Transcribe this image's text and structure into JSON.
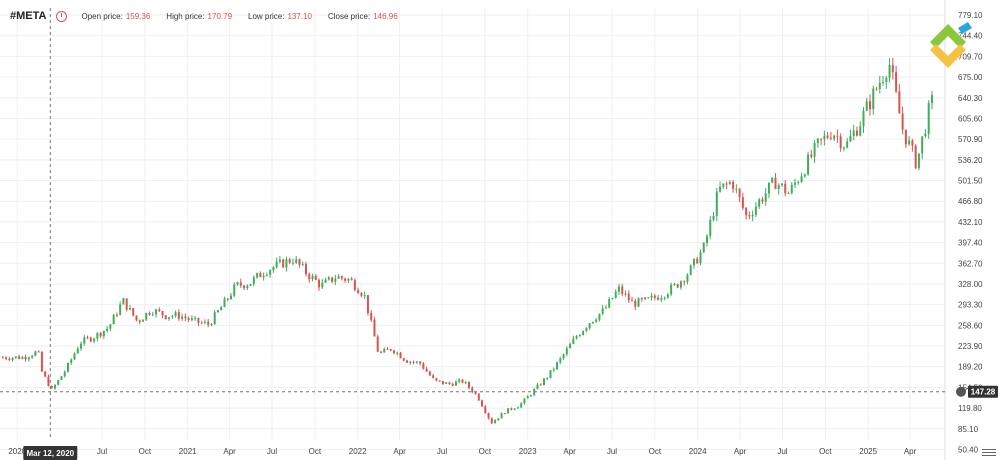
{
  "header": {
    "symbol": "#META",
    "open_label": "Open price:",
    "open_value": "159.36",
    "high_label": "High price:",
    "high_value": "170.79",
    "low_label": "Low price:",
    "low_value": "137.10",
    "close_label": "Close price:",
    "close_value": "146.96"
  },
  "crosshair": {
    "date_label": "Mar 12, 2020",
    "price_label": "147.28",
    "price": 147.28
  },
  "colors": {
    "up": "#3fae5a",
    "down": "#d9534f",
    "grid": "#efefef",
    "axis_text": "#444444",
    "price_label_bg": "#333333",
    "date_label_bg": "#333333"
  },
  "icons": [
    "clock-icon",
    "crosshair-target-icon",
    "settings-icon",
    "logo-icon"
  ],
  "chart_data": {
    "type": "candlestick",
    "y_axis": {
      "ticks": [
        "50.40",
        "85.10",
        "119.80",
        "154.50",
        "189.20",
        "223.90",
        "258.60",
        "293.30",
        "328.00",
        "362.70",
        "397.40",
        "432.10",
        "466.80",
        "501.50",
        "536.20",
        "570.90",
        "605.60",
        "640.30",
        "675.00",
        "709.70",
        "744.40",
        "779.10"
      ],
      "tick_values": [
        50.4,
        85.1,
        119.8,
        154.5,
        189.2,
        223.9,
        258.6,
        293.3,
        328.0,
        362.7,
        397.4,
        432.1,
        466.8,
        501.5,
        536.2,
        570.9,
        605.6,
        640.3,
        675.0,
        709.7,
        744.4,
        779.1
      ],
      "range": [
        50.4,
        779.1
      ]
    },
    "x_axis": {
      "labels": [
        "2020",
        "Jul",
        "Oct",
        "2021",
        "Apr",
        "Jul",
        "Oct",
        "2022",
        "Apr",
        "Jul",
        "Oct",
        "2023",
        "Apr",
        "Jul",
        "Oct",
        "2024",
        "Apr",
        "Jul",
        "Oct",
        "2025",
        "Apr"
      ],
      "label_dates": [
        "2020-01-01",
        "2020-07-01",
        "2020-10-01",
        "2021-01-01",
        "2021-04-01",
        "2021-07-01",
        "2021-10-01",
        "2022-01-01",
        "2022-04-01",
        "2022-07-01",
        "2022-10-01",
        "2023-01-01",
        "2023-04-01",
        "2023-07-01",
        "2023-10-01",
        "2024-01-01",
        "2024-04-01",
        "2024-07-01",
        "2024-10-01",
        "2025-01-01",
        "2025-04-01"
      ],
      "range": [
        "2019-11-25",
        "2025-06-15"
      ]
    },
    "series": [
      {
        "date": "2020-01",
        "close": 205
      },
      {
        "date": "2020-02",
        "close": 215
      },
      {
        "date": "2020-02-20",
        "close": 185
      },
      {
        "date": "2020-03",
        "close": 150
      },
      {
        "date": "2020-04",
        "close": 185
      },
      {
        "date": "2020-05",
        "close": 230
      },
      {
        "date": "2020-06",
        "close": 240
      },
      {
        "date": "2020-07",
        "close": 255
      },
      {
        "date": "2020-08",
        "close": 300
      },
      {
        "date": "2020-09",
        "close": 265
      },
      {
        "date": "2020-10",
        "close": 285
      },
      {
        "date": "2020-11",
        "close": 275
      },
      {
        "date": "2020-12",
        "close": 275
      },
      {
        "date": "2021-01",
        "close": 265
      },
      {
        "date": "2021-02",
        "close": 260
      },
      {
        "date": "2021-03",
        "close": 290
      },
      {
        "date": "2021-04",
        "close": 325
      },
      {
        "date": "2021-05",
        "close": 330
      },
      {
        "date": "2021-06",
        "close": 350
      },
      {
        "date": "2021-07",
        "close": 360
      },
      {
        "date": "2021-08",
        "close": 370
      },
      {
        "date": "2021-09",
        "close": 345
      },
      {
        "date": "2021-10",
        "close": 325
      },
      {
        "date": "2021-11",
        "close": 340
      },
      {
        "date": "2021-12",
        "close": 335
      },
      {
        "date": "2022-01",
        "close": 310
      },
      {
        "date": "2022-02",
        "close": 210
      },
      {
        "date": "2022-03",
        "close": 220
      },
      {
        "date": "2022-04",
        "close": 200
      },
      {
        "date": "2022-05",
        "close": 195
      },
      {
        "date": "2022-06",
        "close": 165
      },
      {
        "date": "2022-07",
        "close": 160
      },
      {
        "date": "2022-08",
        "close": 165
      },
      {
        "date": "2022-09",
        "close": 140
      },
      {
        "date": "2022-10",
        "close": 95
      },
      {
        "date": "2022-11",
        "close": 115
      },
      {
        "date": "2022-12",
        "close": 125
      },
      {
        "date": "2023-01",
        "close": 150
      },
      {
        "date": "2023-02",
        "close": 175
      },
      {
        "date": "2023-03",
        "close": 205
      },
      {
        "date": "2023-04",
        "close": 240
      },
      {
        "date": "2023-05",
        "close": 265
      },
      {
        "date": "2023-06",
        "close": 285
      },
      {
        "date": "2023-07",
        "close": 320
      },
      {
        "date": "2023-08",
        "close": 295
      },
      {
        "date": "2023-09",
        "close": 300
      },
      {
        "date": "2023-10",
        "close": 310
      },
      {
        "date": "2023-11",
        "close": 325
      },
      {
        "date": "2023-12",
        "close": 350
      },
      {
        "date": "2024-01",
        "close": 390
      },
      {
        "date": "2024-02",
        "close": 485
      },
      {
        "date": "2024-03",
        "close": 500
      },
      {
        "date": "2024-04",
        "close": 440
      },
      {
        "date": "2024-05",
        "close": 470
      },
      {
        "date": "2024-06",
        "close": 500
      },
      {
        "date": "2024-07",
        "close": 480
      },
      {
        "date": "2024-08",
        "close": 520
      },
      {
        "date": "2024-09",
        "close": 560
      },
      {
        "date": "2024-10",
        "close": 585
      },
      {
        "date": "2024-11",
        "close": 560
      },
      {
        "date": "2024-12",
        "close": 600
      },
      {
        "date": "2025-01",
        "close": 650
      },
      {
        "date": "2025-02",
        "close": 700
      },
      {
        "date": "2025-03",
        "close": 590
      },
      {
        "date": "2025-04",
        "close": 530
      },
      {
        "date": "2025-05",
        "close": 630
      },
      {
        "date": "2025-06",
        "close": 650
      }
    ]
  }
}
